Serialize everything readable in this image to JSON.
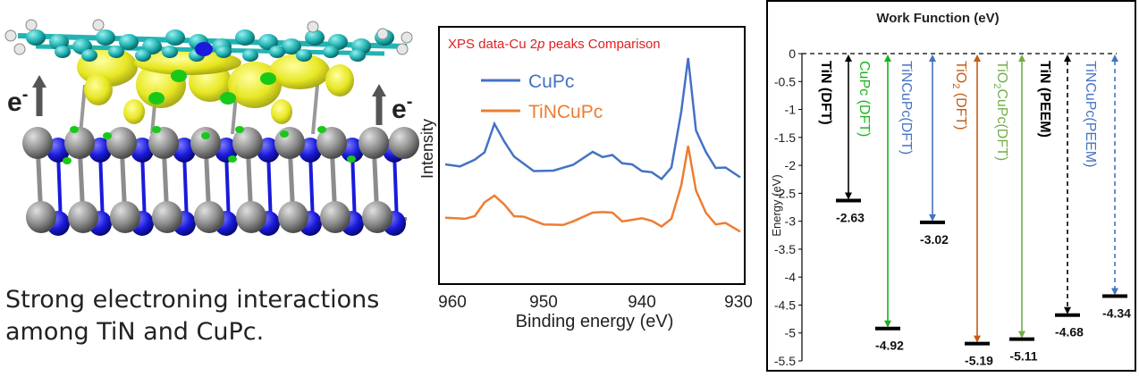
{
  "molecule": {
    "electron_label_left": "e",
    "electron_label_right": "e",
    "electron_sup": "-",
    "caption_line1": "Strong electroning interactions",
    "caption_line2": "among TiN and CuPc.",
    "colors": {
      "carbon": "#22b3b3",
      "hydrogen": "#d9d9d9",
      "density": "#e6e619",
      "nitrogen": "#1a1adb",
      "titanium": "#8c8c8c",
      "green": "#19c919"
    }
  },
  "chart_data": [
    {
      "type": "line",
      "title_parts": [
        "XPS data-Cu  2",
        "p",
        " peaks  Comparison"
      ],
      "xlabel": "Binding energy (eV)",
      "ylabel": "Intensity",
      "xlim": [
        960,
        930
      ],
      "xticks": [
        "960",
        "950",
        "940",
        "930"
      ],
      "yticks": false,
      "legend_position": "top-center",
      "series": [
        {
          "name": "CuPc",
          "color": "#4472c4",
          "x": [
            960,
            958.5,
            957,
            956,
            955,
            954,
            953,
            951,
            949,
            947,
            945,
            944,
            943,
            942,
            941,
            940,
            939,
            938,
            937,
            936,
            935.3,
            934.5,
            933.5,
            932.5,
            931.5,
            930
          ],
          "y": [
            0.32,
            0.33,
            0.35,
            0.42,
            0.58,
            0.49,
            0.37,
            0.3,
            0.28,
            0.34,
            0.4,
            0.39,
            0.38,
            0.35,
            0.32,
            0.3,
            0.27,
            0.25,
            0.3,
            0.68,
            1.0,
            0.56,
            0.4,
            0.32,
            0.3,
            0.26
          ]
        },
        {
          "name": "TiNCuPc",
          "color": "#ed7d31",
          "x": [
            960,
            959,
            958,
            957,
            956,
            955,
            954,
            953,
            952,
            950,
            948,
            947,
            945,
            944,
            943,
            942,
            941,
            940,
            939,
            938,
            937,
            936,
            935.3,
            934.5,
            933.5,
            932.5,
            931.5,
            930
          ],
          "y": [
            -0.05,
            -0.02,
            -0.06,
            0.0,
            0.1,
            0.2,
            0.08,
            0.0,
            -0.04,
            -0.08,
            -0.12,
            -0.05,
            0.0,
            0.04,
            0.0,
            -0.05,
            -0.07,
            -0.02,
            -0.08,
            -0.1,
            -0.06,
            0.3,
            0.65,
            0.25,
            0.0,
            -0.08,
            -0.1,
            -0.15
          ]
        }
      ]
    },
    {
      "type": "bar",
      "title": "Work Function (eV)",
      "ylabel": "Energy (eV)",
      "ylim": [
        -5.5,
        0
      ],
      "yticks": [
        "0",
        "-0.5",
        "-1",
        "-1.5",
        "-2",
        "-2.5",
        "-3",
        "-3.5",
        "-4",
        "-4.5",
        "-5",
        "-5.5"
      ],
      "series": [
        {
          "name": "TiN (DFT)",
          "value": -2.63,
          "value_label": "-2.63",
          "color": "#000000",
          "dashed": false
        },
        {
          "name": "CuPc (DFT)",
          "value": -4.92,
          "value_label": "-4.92",
          "color": "#19b319",
          "dashed": false
        },
        {
          "name": "TiNCuPc(DFT)",
          "value": -3.02,
          "value_label": "-3.02",
          "color": "#4472c4",
          "dashed": false
        },
        {
          "name": "TiO2 (DFT)",
          "name_main": "TiO",
          "name_sub": "2",
          "name_rest": " (DFT)",
          "value": -5.19,
          "value_label": "-5.19",
          "color": "#c55a11",
          "dashed": false
        },
        {
          "name": "TiO2CuPc(DFT)",
          "name_main": "TiO",
          "name_sub": "2",
          "name_rest": "CuPc(DFT)",
          "value": -5.11,
          "value_label": "-5.11",
          "color": "#70ad47",
          "dashed": false
        },
        {
          "name": "TiN (PEEM)",
          "value": -4.68,
          "value_label": "-4.68",
          "color": "#000000",
          "dashed": true
        },
        {
          "name": "TiNCuPc(PEEM)",
          "value": -4.34,
          "value_label": "-4.34",
          "color": "#4472c4",
          "dashed": true
        }
      ]
    }
  ]
}
